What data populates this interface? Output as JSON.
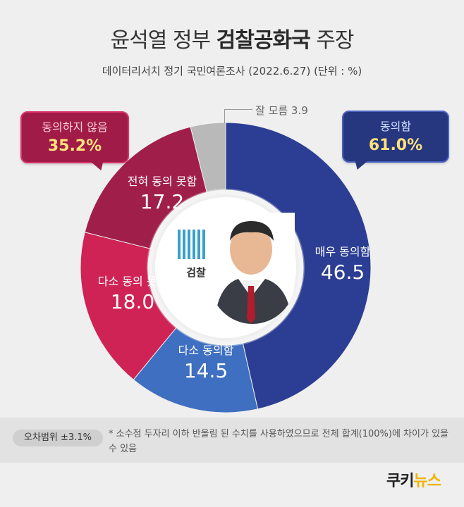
{
  "header": {
    "title_prefix": "윤석열 정부",
    "title_highlight": "검찰공화국",
    "title_suffix": "주장",
    "subtitle": "데이터리서치 정기 국민여론조사 (2022.6.27)  (단위 : %)"
  },
  "callouts": {
    "disagree_label": "동의하지 않음",
    "disagree_value": "35.2%",
    "agree_label": "동의함",
    "agree_value": "61.0%",
    "dontknow_label": "잘 모름 3.9"
  },
  "center": {
    "logo_text": "검찰"
  },
  "footer": {
    "error_margin": "오차범위  ±3.1%",
    "note": "* 소수점 두자리 이하 반올림 된 수치를 사용하였으므로 전체 합계(100%)에 차이가 있을 수 있음",
    "brand_a": "쿠키",
    "brand_b": "뉴스"
  },
  "colors": {
    "strongly_agree": "#2c3e93",
    "somewhat_agree": "#3f6fc0",
    "somewhat_disagree": "#cf2356",
    "strongly_disagree": "#a01f4a",
    "dont_know": "#b9b9b9"
  },
  "chart_data": {
    "type": "pie",
    "title": "윤석열 정부 검찰공화국 주장",
    "categories": [
      "매우 동의함",
      "다소 동의함",
      "다소 동의 못함",
      "전혀 동의 못함",
      "잘 모름"
    ],
    "values": [
      46.5,
      14.5,
      18.0,
      17.2,
      3.9
    ],
    "labels": [
      "46.5",
      "14.5",
      "18.0",
      "17.2",
      "3.9"
    ],
    "groups": [
      {
        "name": "동의함",
        "total": 61.0,
        "members": [
          "매우 동의함",
          "다소 동의함"
        ]
      },
      {
        "name": "동의하지 않음",
        "total": 35.2,
        "members": [
          "다소 동의 못함",
          "전혀 동의 못함"
        ]
      }
    ],
    "donut": true
  }
}
